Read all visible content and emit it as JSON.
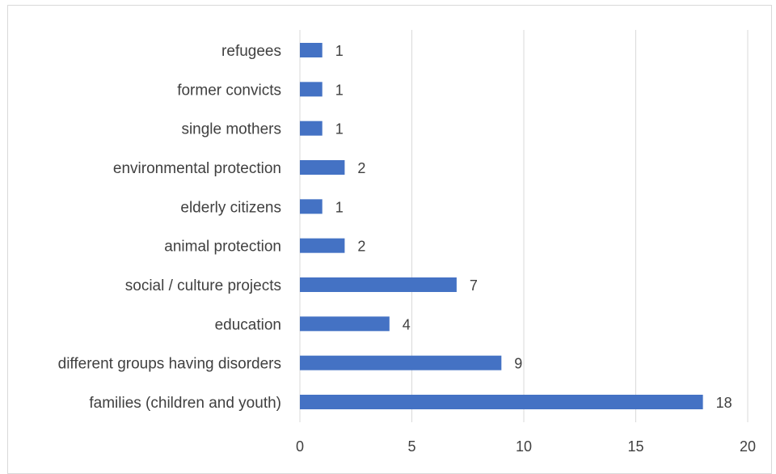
{
  "chart_data": {
    "type": "bar",
    "orientation": "horizontal",
    "categories": [
      "refugees",
      "former convicts",
      "single mothers",
      "environmental protection",
      "elderly citizens",
      "animal protection",
      "social / culture projects",
      "education",
      "different groups having disorders",
      "families (children and youth)"
    ],
    "values": [
      1,
      1,
      1,
      2,
      1,
      2,
      7,
      4,
      9,
      18
    ],
    "xticks": [
      "0",
      "5",
      "10",
      "15",
      "20"
    ],
    "xlim": [
      0,
      20
    ],
    "title": "",
    "xlabel": "",
    "ylabel": "",
    "grid": "vertical",
    "legend": "none",
    "bar_color": "#4472c4",
    "grid_color": "#d9d9d9",
    "text_color": "#404040"
  }
}
